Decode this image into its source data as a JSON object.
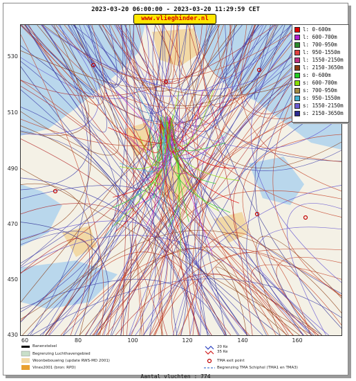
{
  "header": {
    "title": "2023-03-20 06:00:00 - 2023-03-20 11:29:59 CET",
    "site_badge": "www.vlieghinder.nl"
  },
  "axes": {
    "x_ticks": [
      "60",
      "80",
      "100",
      "120",
      "140",
      "160"
    ],
    "y_ticks": [
      "530",
      "510",
      "490",
      "470",
      "450",
      "430"
    ],
    "x_range": [
      60,
      176
    ],
    "y_range": [
      430,
      536
    ]
  },
  "legend": {
    "entries": [
      {
        "label": "l: 0-600m",
        "color": "#e00000"
      },
      {
        "label": "l: 600-700m",
        "color": "#b020d0"
      },
      {
        "label": "l: 700-950m",
        "color": "#2c8a2c"
      },
      {
        "label": "l: 950-1550m",
        "color": "#e04040"
      },
      {
        "label": "l: 1550-2150m",
        "color": "#c03080"
      },
      {
        "label": "l: 2150-3650m",
        "color": "#8a3a10"
      },
      {
        "label": "s: 0-600m",
        "color": "#22cc22"
      },
      {
        "label": "s: 600-700m",
        "color": "#88e000"
      },
      {
        "label": "s: 700-950m",
        "color": "#a08840"
      },
      {
        "label": "s: 950-1550m",
        "color": "#40b0d0"
      },
      {
        "label": "s: 1550-2150m",
        "color": "#6a5ad0"
      },
      {
        "label": "s: 2150-3650m",
        "color": "#2a2a90"
      }
    ]
  },
  "map_key": {
    "runway": "Banenstelsel",
    "airport_boundary": "Begrenzing Luchthavengebied",
    "housing": "Woonbebouwing (update RWS-MD 2001)",
    "vinex": "Vinex2001 (bron: RPD)",
    "noise_contour_a": "20 Ke",
    "noise_contour_b": "35 Ke",
    "tma_exit": "TMA exit point",
    "tma_boundary": "Begrenzing TMA Schiphol  (TMA1 en TMA3)"
  },
  "footer": {
    "flight_count": "Aantal vluchten : 774"
  },
  "colors": {
    "land": "#f4f1e6",
    "water": "#b9d7ec",
    "urban": "#f2d9a6",
    "route_red": "#c23a1e",
    "route_blue": "#3a3aa8"
  }
}
